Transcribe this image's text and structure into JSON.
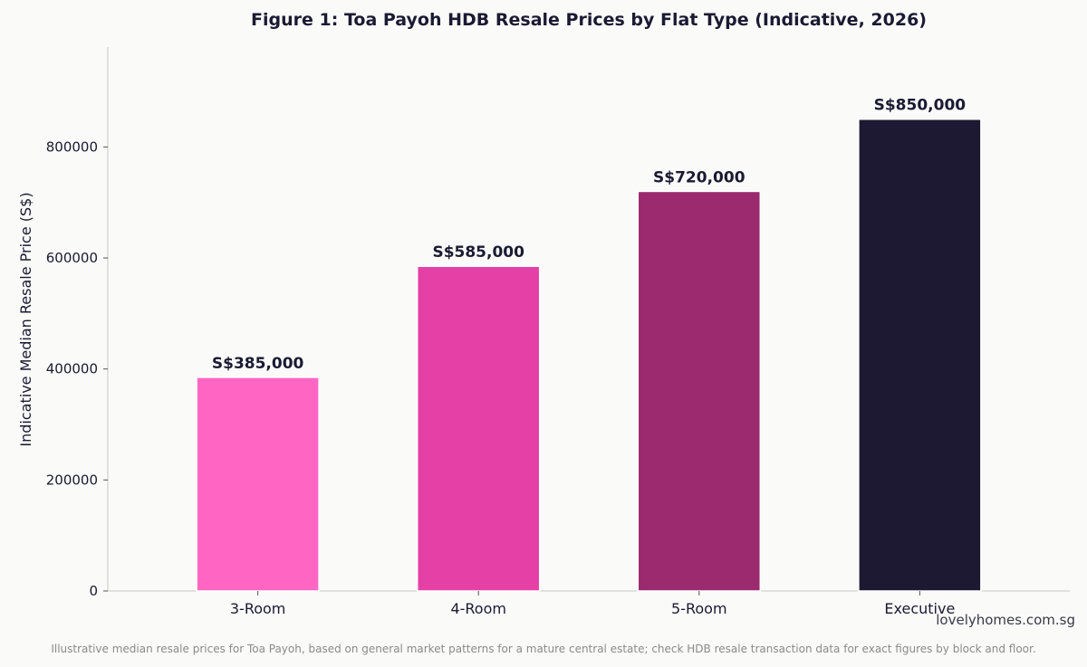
{
  "chart_data": {
    "type": "bar",
    "title": "Figure 1: Toa Payoh HDB Resale Prices by Flat Type (Indicative, 2026)",
    "xlabel": "",
    "ylabel": "Indicative Median Resale Price (S$)",
    "categories": [
      "3-Room",
      "4-Room",
      "5-Room",
      "Executive"
    ],
    "values": [
      385000,
      585000,
      720000,
      850000
    ],
    "data_labels": [
      "S$385,000",
      "S$585,000",
      "S$720,000",
      "S$850,000"
    ],
    "colors": [
      "#ff66c4",
      "#e540a5",
      "#9b2a6f",
      "#1e1932"
    ],
    "ylim": [
      0,
      980000
    ],
    "yticks": [
      0,
      200000,
      400000,
      600000,
      800000
    ],
    "ytick_labels": [
      "0",
      "200000",
      "400000",
      "600000",
      "800000"
    ],
    "grid": false,
    "legend": "none"
  },
  "watermark": "lovelyhomes.com.sg",
  "footnote": "Illustrative median resale prices for Toa Payoh, based on general market patterns for a mature central estate; check HDB resale transaction data for exact figures by block and floor."
}
